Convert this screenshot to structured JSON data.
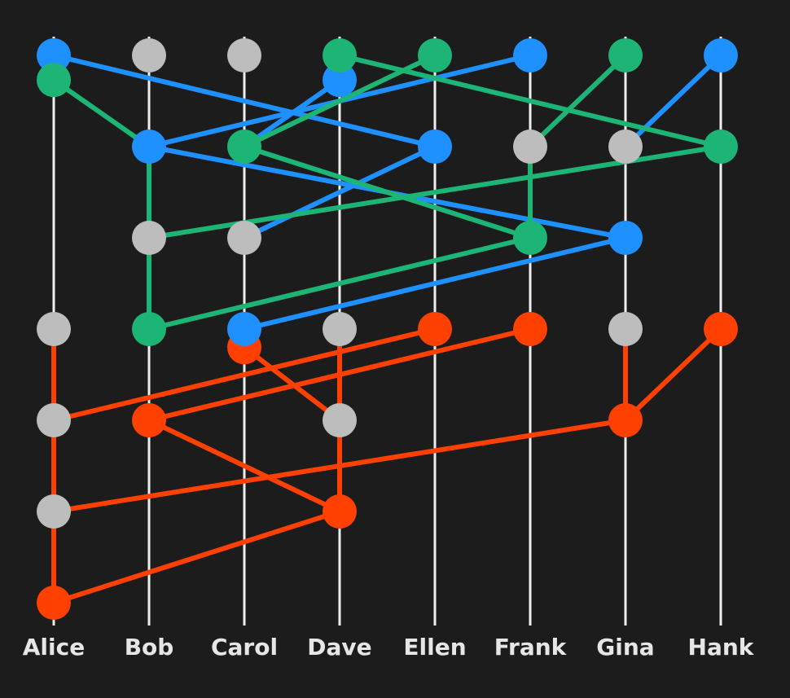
{
  "participants": [
    "Alice",
    "Bob",
    "Carol",
    "Dave",
    "Ellen",
    "Frank",
    "Gina",
    "Hank"
  ],
  "colors": {
    "background": "#1c1c1c",
    "lane": "#eeeeee",
    "idle": "#bdbdbd",
    "blue": "#1e90ff",
    "green": "#1db575",
    "red": "#ff4000"
  },
  "nodes": [
    {
      "id": "a1",
      "p": 0,
      "step": 0.0,
      "c": "blue"
    },
    {
      "id": "a2",
      "p": 0,
      "step": 0.27,
      "c": "green"
    },
    {
      "id": "b1",
      "p": 1,
      "step": 0.0,
      "c": "idle"
    },
    {
      "id": "c1",
      "p": 2,
      "step": 0.0,
      "c": "idle"
    },
    {
      "id": "d1",
      "p": 3,
      "step": 0.27,
      "c": "blue"
    },
    {
      "id": "d2",
      "p": 3,
      "step": 0.0,
      "c": "green"
    },
    {
      "id": "e1",
      "p": 4,
      "step": 0.0,
      "c": "green"
    },
    {
      "id": "f1",
      "p": 5,
      "step": 0.0,
      "c": "blue"
    },
    {
      "id": "g1",
      "p": 6,
      "step": 0.0,
      "c": "green"
    },
    {
      "id": "h1",
      "p": 7,
      "step": 0.0,
      "c": "blue"
    },
    {
      "id": "b2",
      "p": 1,
      "step": 1.0,
      "c": "blue"
    },
    {
      "id": "c2",
      "p": 2,
      "step": 1.0,
      "c": "green"
    },
    {
      "id": "e2",
      "p": 4,
      "step": 1.0,
      "c": "blue"
    },
    {
      "id": "f2",
      "p": 5,
      "step": 1.0,
      "c": "idle"
    },
    {
      "id": "g2",
      "p": 6,
      "step": 1.0,
      "c": "idle"
    },
    {
      "id": "h2",
      "p": 7,
      "step": 1.0,
      "c": "green"
    },
    {
      "id": "b3",
      "p": 1,
      "step": 2.0,
      "c": "idle"
    },
    {
      "id": "c3",
      "p": 2,
      "step": 2.0,
      "c": "idle"
    },
    {
      "id": "f3",
      "p": 5,
      "step": 2.0,
      "c": "green"
    },
    {
      "id": "g3",
      "p": 6,
      "step": 2.0,
      "c": "blue"
    },
    {
      "id": "a4",
      "p": 0,
      "step": 3.0,
      "c": "idle"
    },
    {
      "id": "b4",
      "p": 1,
      "step": 3.0,
      "c": "green"
    },
    {
      "id": "c5",
      "p": 2,
      "step": 3.2,
      "c": "red"
    },
    {
      "id": "c4",
      "p": 2,
      "step": 3.0,
      "c": "blue"
    },
    {
      "id": "d4",
      "p": 3,
      "step": 3.0,
      "c": "idle"
    },
    {
      "id": "e4",
      "p": 4,
      "step": 3.0,
      "c": "red"
    },
    {
      "id": "f4",
      "p": 5,
      "step": 3.0,
      "c": "red"
    },
    {
      "id": "g4",
      "p": 6,
      "step": 3.0,
      "c": "idle"
    },
    {
      "id": "h4",
      "p": 7,
      "step": 3.0,
      "c": "red"
    },
    {
      "id": "a5",
      "p": 0,
      "step": 4.0,
      "c": "idle"
    },
    {
      "id": "b5",
      "p": 1,
      "step": 4.0,
      "c": "red"
    },
    {
      "id": "d5",
      "p": 3,
      "step": 4.0,
      "c": "idle"
    },
    {
      "id": "g5",
      "p": 6,
      "step": 4.0,
      "c": "red"
    },
    {
      "id": "a6",
      "p": 0,
      "step": 5.0,
      "c": "idle"
    },
    {
      "id": "d6",
      "p": 3,
      "step": 5.0,
      "c": "red"
    },
    {
      "id": "a7",
      "p": 0,
      "step": 6.0,
      "c": "red"
    }
  ],
  "edges": [
    {
      "from": "a1",
      "to": "e2",
      "c": "blue"
    },
    {
      "from": "f1",
      "to": "b2",
      "c": "blue"
    },
    {
      "from": "d1",
      "to": "c2",
      "c": "blue"
    },
    {
      "from": "e2",
      "to": "c3",
      "c": "blue"
    },
    {
      "from": "b2",
      "to": "g3",
      "c": "blue"
    },
    {
      "from": "h1",
      "to": "g2",
      "c": "blue"
    },
    {
      "from": "g3",
      "to": "c4",
      "c": "blue"
    },
    {
      "from": "a2",
      "to": "b2",
      "c": "green"
    },
    {
      "from": "b2",
      "to": "b4",
      "c": "green"
    },
    {
      "from": "e1",
      "to": "c2",
      "c": "green"
    },
    {
      "from": "c2",
      "to": "f3",
      "c": "green"
    },
    {
      "from": "d2",
      "to": "h2",
      "c": "green"
    },
    {
      "from": "g1",
      "to": "f2",
      "c": "green"
    },
    {
      "from": "f2",
      "to": "f3",
      "c": "green"
    },
    {
      "from": "h2",
      "to": "b3",
      "c": "green"
    },
    {
      "from": "f3",
      "to": "b4",
      "c": "green"
    },
    {
      "from": "a4",
      "to": "a7",
      "c": "red"
    },
    {
      "from": "e4",
      "to": "a5",
      "c": "red"
    },
    {
      "from": "f4",
      "to": "b5",
      "c": "red"
    },
    {
      "from": "c5",
      "to": "d5",
      "c": "red"
    },
    {
      "from": "b5",
      "to": "d6",
      "c": "red"
    },
    {
      "from": "d4",
      "to": "d6",
      "c": "red"
    },
    {
      "from": "g4",
      "to": "g5",
      "c": "red"
    },
    {
      "from": "h4",
      "to": "g5",
      "c": "red"
    },
    {
      "from": "g5",
      "to": "a6",
      "c": "red"
    },
    {
      "from": "d6",
      "to": "a7",
      "c": "red"
    }
  ]
}
